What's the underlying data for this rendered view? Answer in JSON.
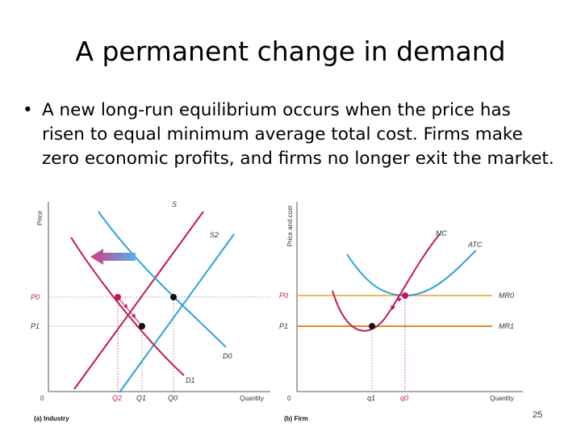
{
  "slide": {
    "title": "A permanent change in demand",
    "bullet": "A new long-run equilibrium occurs when the price has risen to equal minimum average total cost. Firms make zero economic profits, and firms no longer exit the market.",
    "page_number": "25"
  },
  "industry": {
    "panel_title": "(a) Industry",
    "y_axis": "Price",
    "x_axis": "Quantity",
    "origin": "0",
    "price_labels": [
      "P0",
      "P1"
    ],
    "quantity_labels": [
      "Q2",
      "Q1",
      "Q0"
    ],
    "curve_labels": {
      "s": "S",
      "s2": "S2",
      "d0": "D0",
      "d1": "D1"
    }
  },
  "firm": {
    "panel_title": "(b) Firm",
    "y_axis": "Price and cost",
    "x_axis": "Quantity",
    "origin": "0",
    "price_labels": [
      "P0",
      "P1"
    ],
    "quantity_labels": [
      "q1",
      "q0"
    ],
    "curve_labels": {
      "mc": "MC",
      "atc": "ATC",
      "mr0": "MR0",
      "mr1": "MR1"
    }
  },
  "colors": {
    "demand": "#c2185b",
    "supply": "#29a3dc",
    "mr0": "#f2b65a",
    "mr1": "#e0892a",
    "arrow_start": "#4fb3e8",
    "arrow_end": "#d63a8a"
  }
}
